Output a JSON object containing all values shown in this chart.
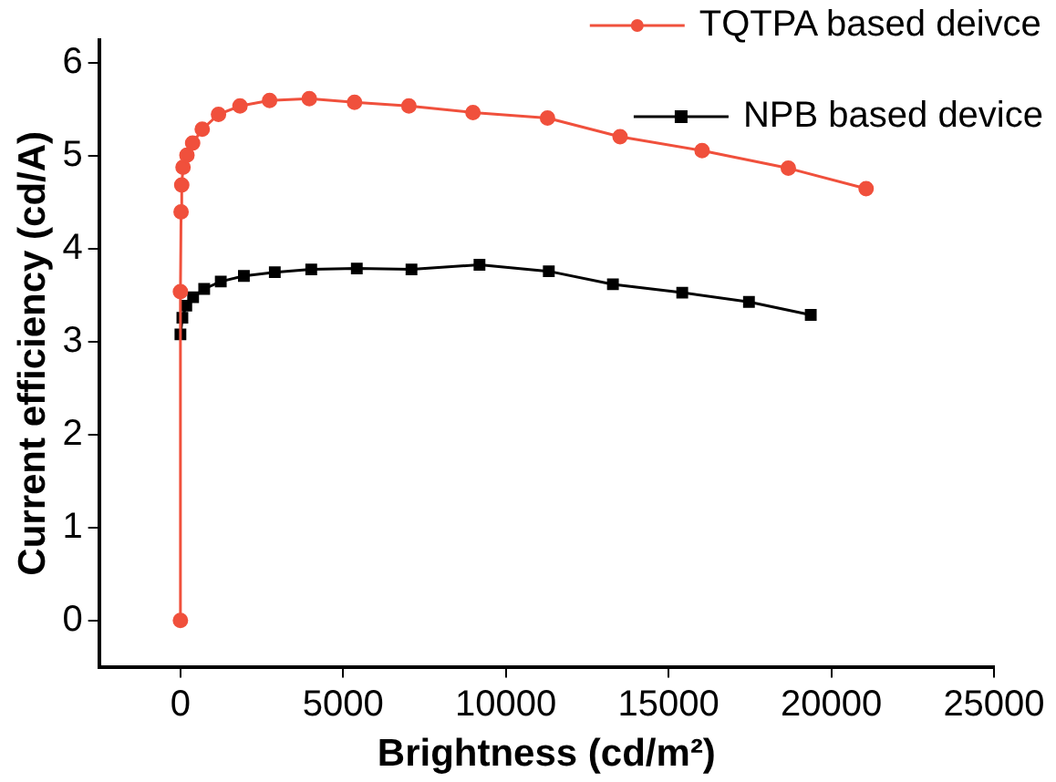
{
  "chart_data": {
    "type": "line",
    "xlabel": "Brightness (cd/m²)",
    "ylabel": "Current efficiency (cd/A)",
    "xlim": [
      -2500,
      25000
    ],
    "xticks": [
      0,
      5000,
      10000,
      15000,
      20000,
      25000
    ],
    "ylim": [
      -0.5,
      6.25
    ],
    "yticks": [
      0,
      1,
      2,
      3,
      4,
      5,
      6
    ],
    "grid": false,
    "legend": "top right",
    "line_style": "solid",
    "series": [
      {
        "name": "TQTPA based deivce",
        "color": "#f0503c",
        "marker": "circle",
        "x": [
          0,
          0,
          20,
          40,
          80,
          200,
          375,
          670,
          1170,
          1830,
          2740,
          3960,
          5350,
          7020,
          8990,
          11280,
          13510,
          16030,
          18680,
          21070
        ],
        "values": [
          0,
          3.54,
          4.4,
          4.69,
          4.88,
          5.01,
          5.14,
          5.29,
          5.45,
          5.54,
          5.6,
          5.62,
          5.58,
          5.54,
          5.47,
          5.41,
          5.21,
          5.06,
          4.87,
          4.65
        ]
      },
      {
        "name": "NPB based device",
        "color": "#000000",
        "marker": "square",
        "x": [
          0,
          60,
          180,
          390,
          730,
          1240,
          1950,
          2900,
          4020,
          5420,
          7100,
          9190,
          11320,
          13290,
          15420,
          17470,
          19370
        ],
        "values": [
          3.08,
          3.26,
          3.39,
          3.48,
          3.57,
          3.65,
          3.71,
          3.75,
          3.78,
          3.79,
          3.78,
          3.83,
          3.76,
          3.62,
          3.53,
          3.43,
          3.29
        ]
      }
    ]
  }
}
